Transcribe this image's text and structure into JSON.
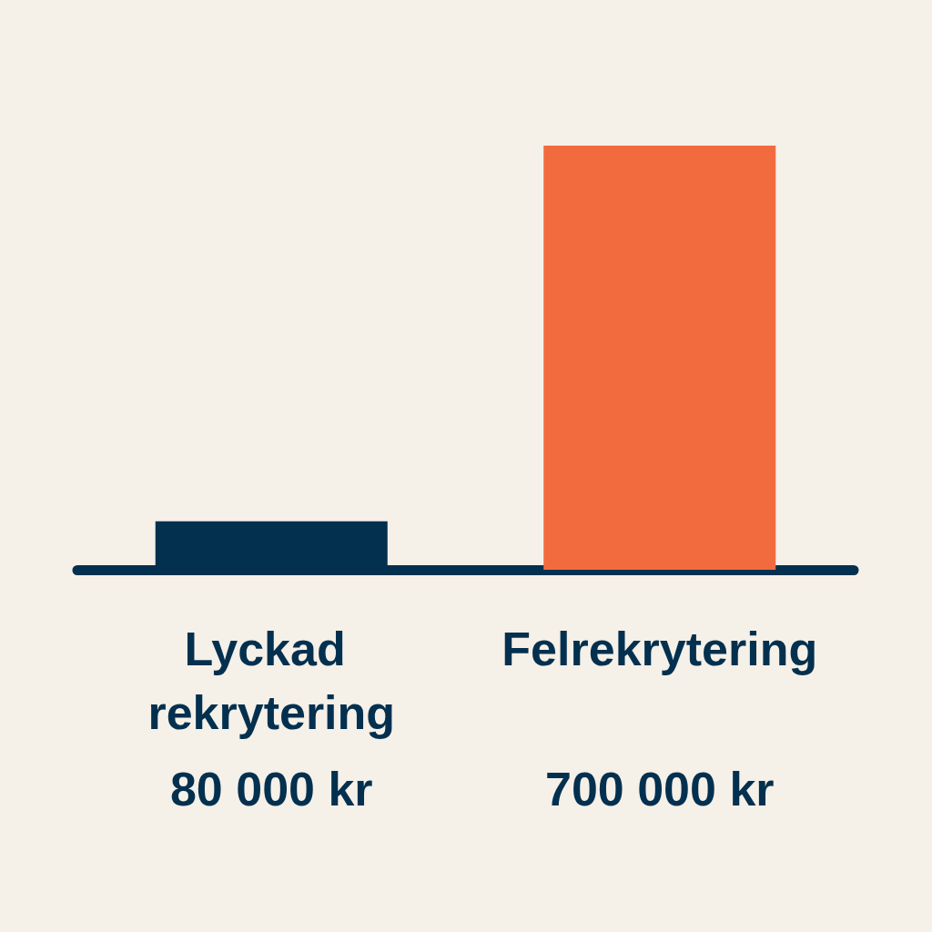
{
  "chart_data": {
    "type": "bar",
    "categories": [
      "Lyckad rekrytering",
      "Felrekrytering"
    ],
    "values": [
      80000,
      700000
    ],
    "colors": [
      "#04304f",
      "#f26b3f"
    ],
    "value_labels": [
      "80 000 kr",
      "700 000 kr"
    ]
  }
}
